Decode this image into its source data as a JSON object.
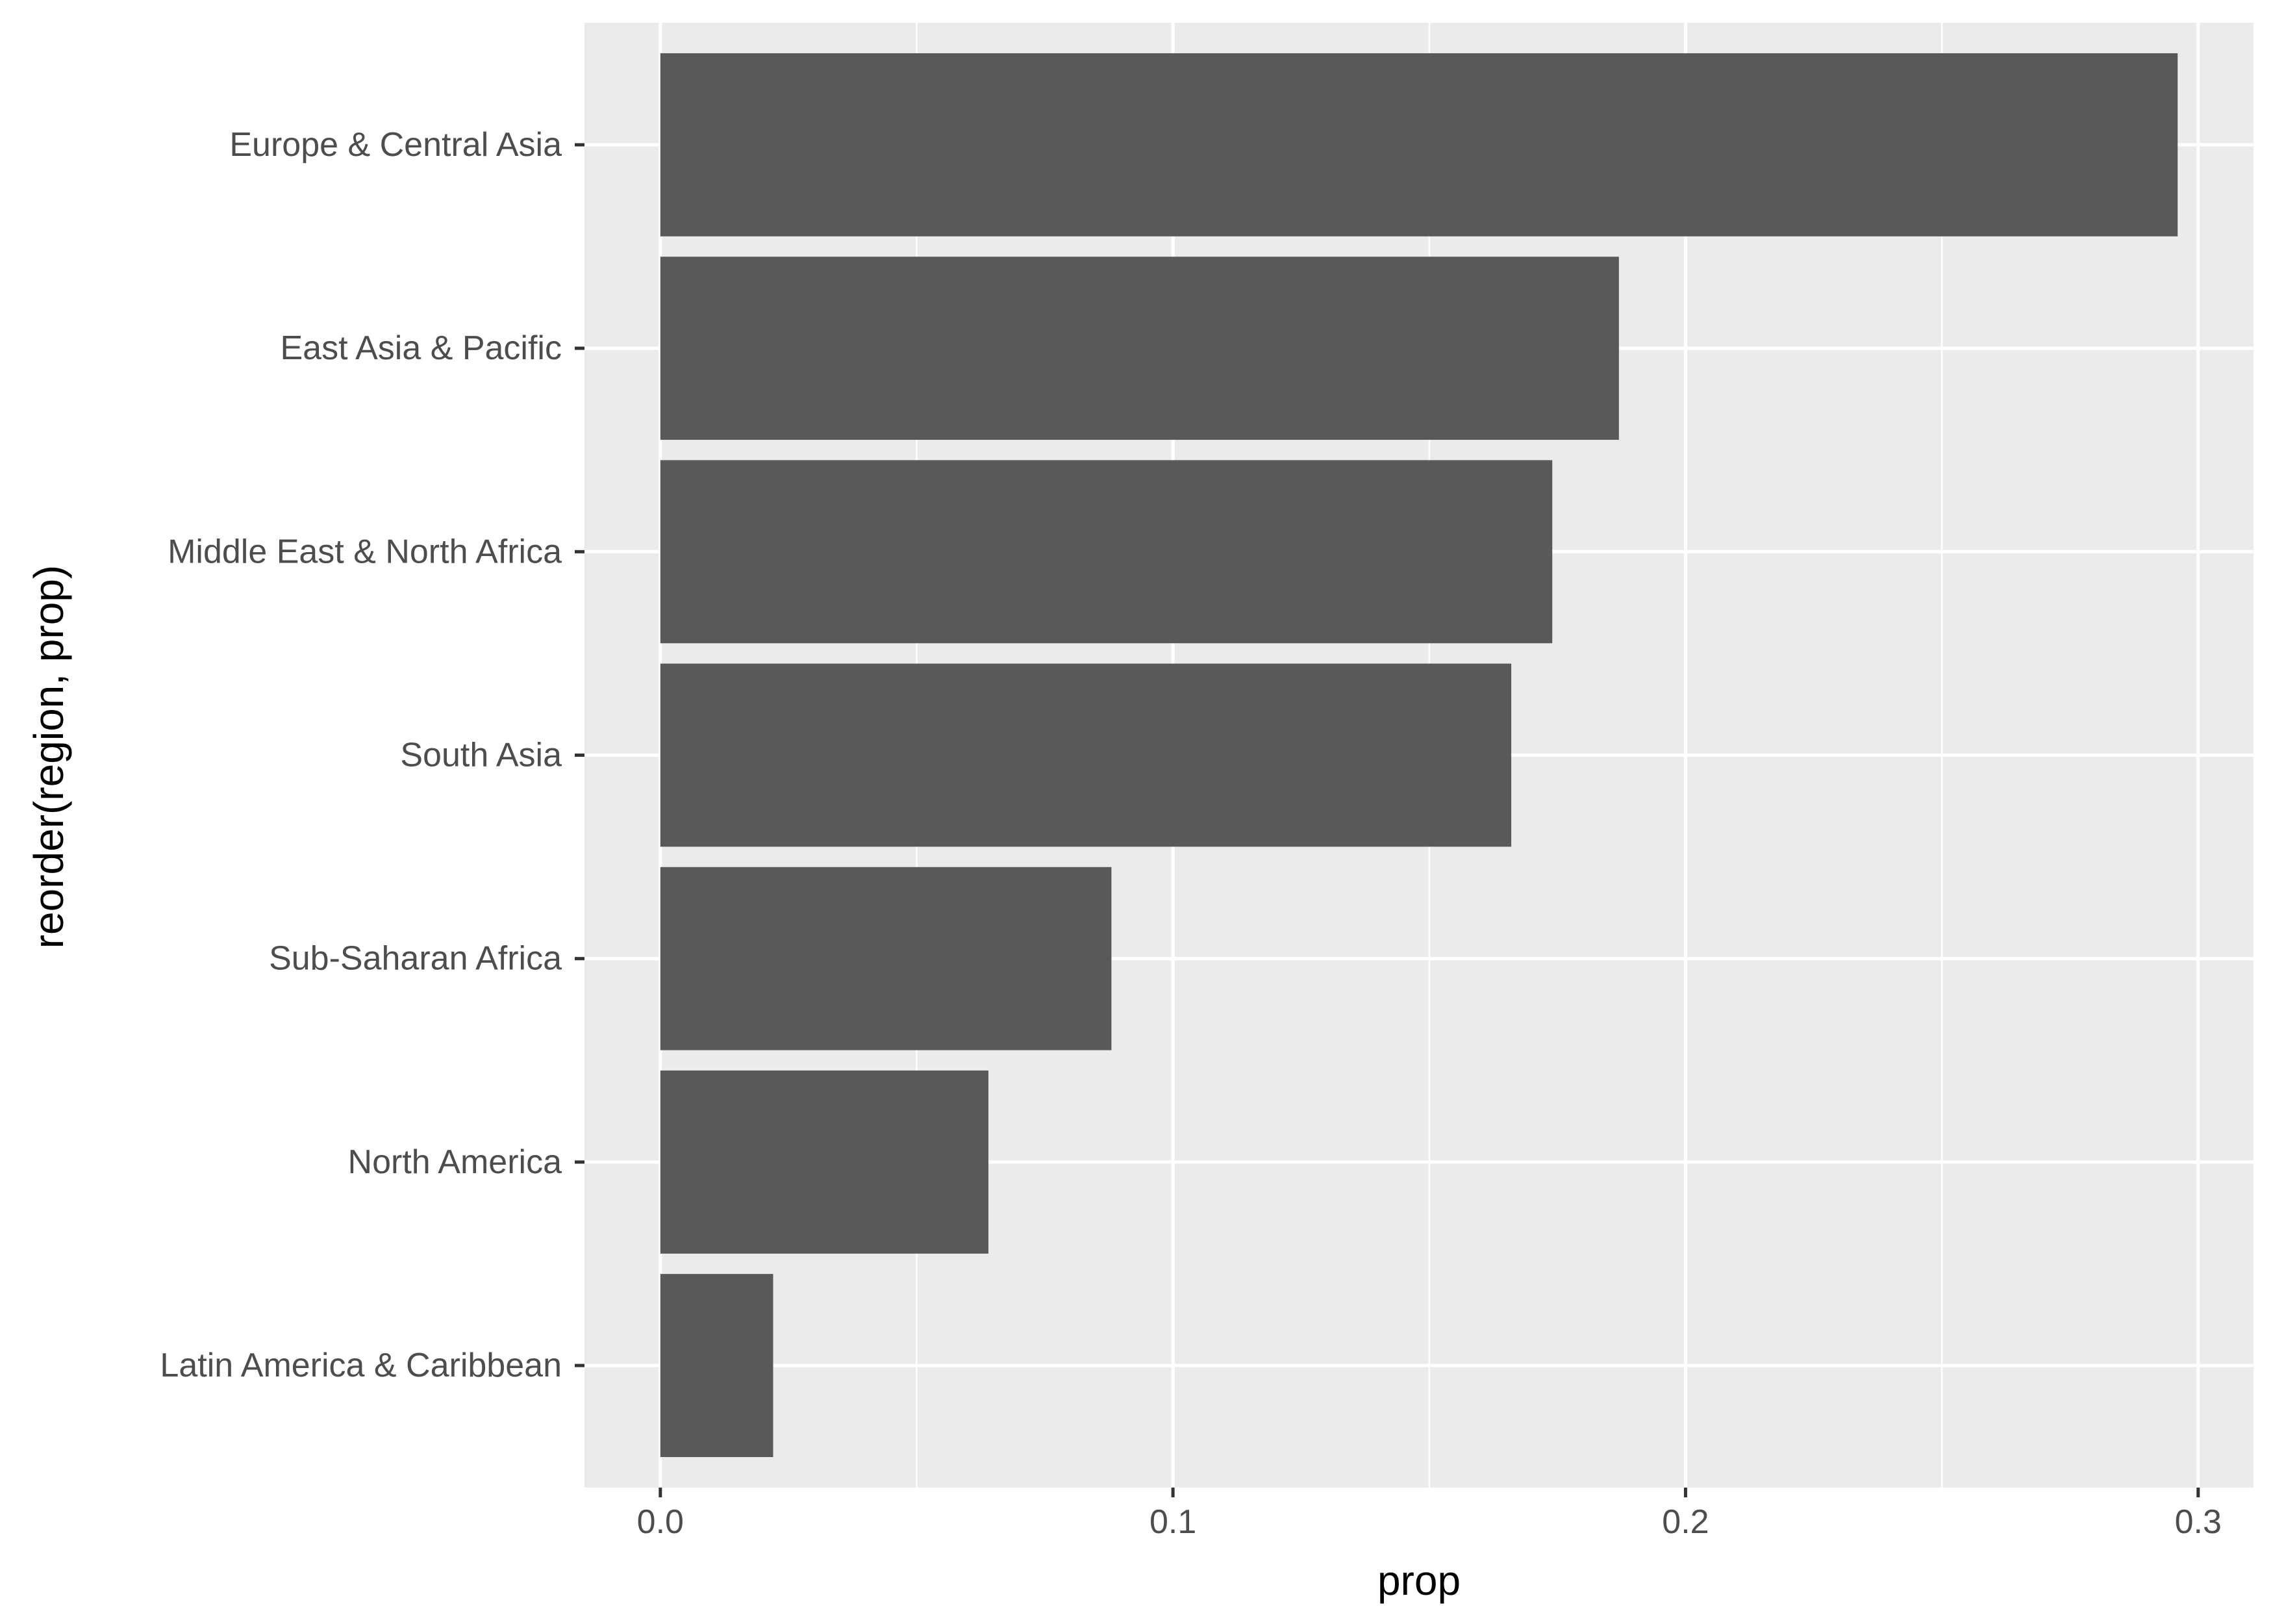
{
  "chart_data": {
    "type": "bar",
    "orientation": "horizontal",
    "title": "",
    "xlabel": "prop",
    "ylabel": "reorder(region, prop)",
    "categories": [
      "Europe & Central Asia",
      "East Asia & Pacific",
      "Middle East & North Africa",
      "South Asia",
      "Sub-Saharan Africa",
      "North America",
      "Latin America & Caribbean"
    ],
    "values": [
      0.296,
      0.187,
      0.174,
      0.166,
      0.088,
      0.064,
      0.022
    ],
    "xlim": [
      -0.0148,
      0.3108
    ],
    "xticks": [
      0.0,
      0.1,
      0.2,
      0.3
    ],
    "xtick_labels": [
      "0.0",
      "0.1",
      "0.2",
      "0.3"
    ],
    "grid": true,
    "legend": "none",
    "colors": {
      "bar": "#595959",
      "panel": "#ebebeb",
      "grid": "#ffffff",
      "tick_label": "#4d4d4d",
      "axis_title": "#000000"
    }
  }
}
